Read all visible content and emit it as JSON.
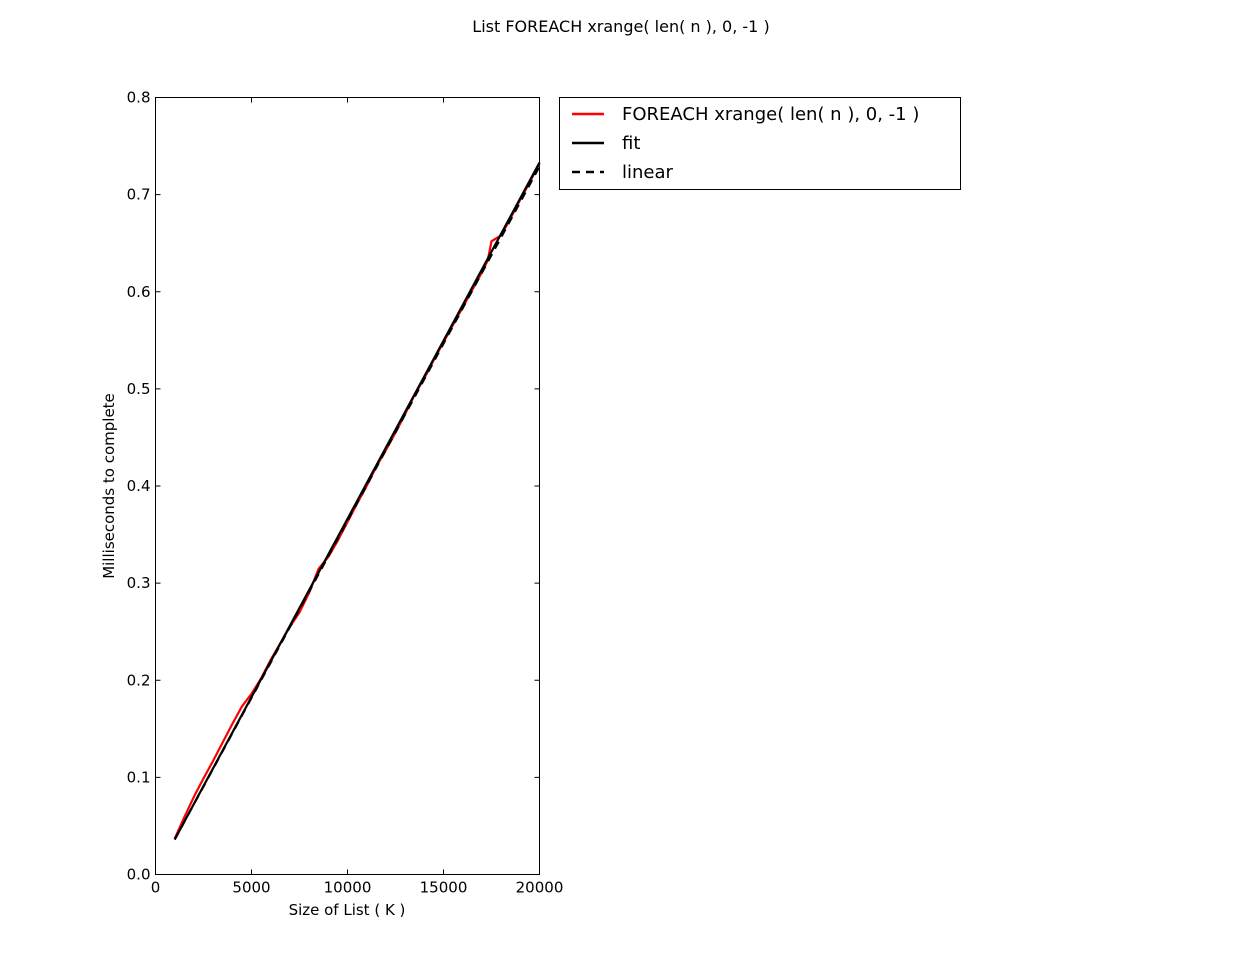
{
  "chart_data": {
    "type": "line",
    "title": "List FOREACH xrange( len( n ), 0, -1 )",
    "xlabel": "Size of List ( K )",
    "ylabel": "Milliseconds to complete",
    "xlim": [
      0,
      20000
    ],
    "ylim": [
      0,
      0.8
    ],
    "xticks": [
      0,
      5000,
      10000,
      15000,
      20000
    ],
    "yticks": [
      0.0,
      0.1,
      0.2,
      0.3,
      0.4,
      0.5,
      0.6,
      0.7,
      0.8
    ],
    "xtick_labels": [
      "0",
      "5000",
      "10000",
      "15000",
      "20000"
    ],
    "ytick_labels": [
      "0.0",
      "0.1",
      "0.2",
      "0.3",
      "0.4",
      "0.5",
      "0.6",
      "0.7",
      "0.8"
    ],
    "grid": false,
    "legend_position": "outside-top-right",
    "series": [
      {
        "name": "FOREACH xrange( len( n ), 0, -1 )",
        "color": "#ff0000",
        "style": "solid",
        "x": [
          1000,
          1500,
          2000,
          2500,
          3000,
          3500,
          4000,
          4500,
          5000,
          5500,
          6000,
          6500,
          7000,
          7500,
          8000,
          8500,
          9000,
          9500,
          10000,
          10500,
          11000,
          11500,
          12000,
          12500,
          13000,
          13500,
          14000,
          14500,
          15000,
          15500,
          16000,
          16500,
          17000,
          17300,
          17500,
          18000,
          18500,
          19000,
          19500,
          20000
        ],
        "y": [
          0.037,
          0.059,
          0.08,
          0.099,
          0.117,
          0.136,
          0.155,
          0.173,
          0.186,
          0.202,
          0.221,
          0.238,
          0.255,
          0.27,
          0.29,
          0.315,
          0.327,
          0.344,
          0.363,
          0.382,
          0.4,
          0.42,
          0.437,
          0.455,
          0.474,
          0.494,
          0.511,
          0.53,
          0.548,
          0.566,
          0.584,
          0.602,
          0.62,
          0.632,
          0.652,
          0.658,
          0.676,
          0.695,
          0.713,
          0.732
        ]
      },
      {
        "name": "fit",
        "color": "#000000",
        "style": "solid",
        "x": [
          1000,
          20000
        ],
        "y": [
          0.036,
          0.733
        ]
      },
      {
        "name": "linear",
        "color": "#000000",
        "style": "dashed",
        "x": [
          1000,
          20000
        ],
        "y": [
          0.036,
          0.729
        ]
      }
    ]
  }
}
